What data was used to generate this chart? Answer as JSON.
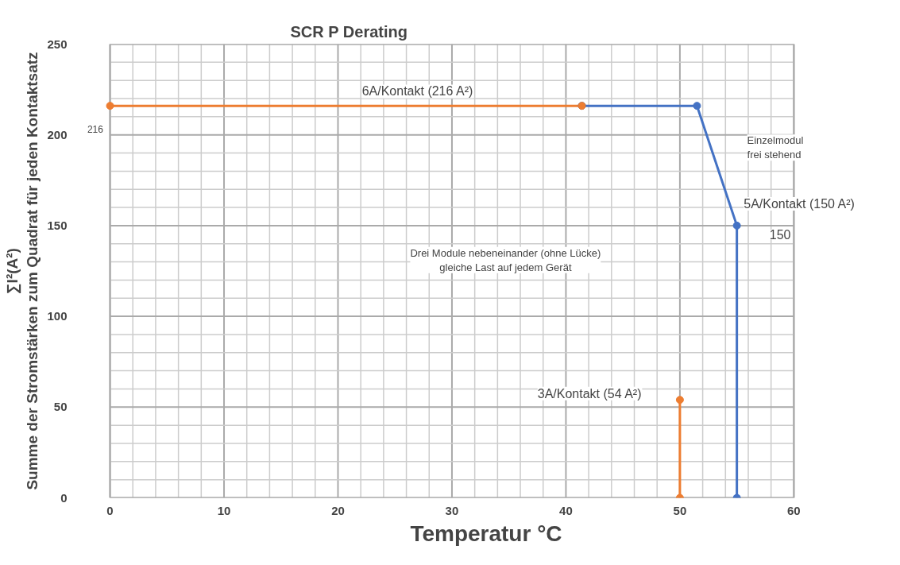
{
  "chart_data": {
    "type": "line",
    "title": "SCR P Derating",
    "xlabel": "Temperatur °C",
    "ylabel": "∑I²(A²)\nSumme der Stromstärken zum Quadrat für jeden Kontaktsatz",
    "series": [
      {
        "color": "#ed7d31",
        "x": [
          0,
          41.4
        ],
        "values": [
          216,
          216
        ]
      },
      {
        "color": "#4472c4",
        "x": [
          41.4,
          51.5,
          55,
          55
        ],
        "values": [
          216,
          216,
          150,
          0
        ]
      },
      {
        "color": "#ed7d31",
        "x": [
          50,
          50
        ],
        "values": [
          54,
          0
        ]
      }
    ],
    "xlim": [
      0,
      60
    ],
    "ylim": [
      0,
      250
    ],
    "xticks": [
      0,
      10,
      20,
      30,
      40,
      50,
      60
    ],
    "yticks": [
      0,
      50,
      100,
      150,
      200,
      250
    ],
    "grid": true,
    "marker": "circle",
    "annotations": [
      "6A/Kontakt (216 A²)",
      "216",
      "Einzelmodul\nfrei stehend",
      "5A/Kontakt (150 A²)",
      "150",
      "Drei Module nebeneinander (ohne Lücke)\ngleiche Last auf jedem Gerät",
      "3A/Kontakt (54 A²)"
    ]
  }
}
